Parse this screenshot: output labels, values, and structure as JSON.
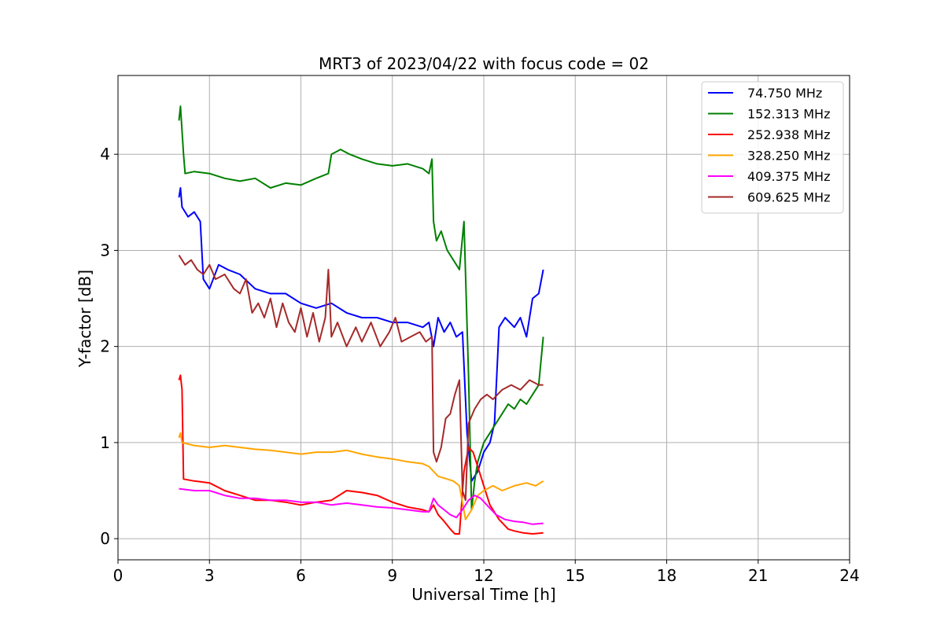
{
  "chart_data": {
    "type": "line",
    "title": "MRT3 of 2023/04/22 with focus code = 02",
    "xlabel": "Universal Time [h]",
    "ylabel": "Y-factor [dB]",
    "xlim": [
      0,
      24
    ],
    "ylim": [
      -0.22,
      4.82
    ],
    "x_ticks": [
      0,
      3,
      6,
      9,
      12,
      15,
      18,
      21,
      24
    ],
    "y_ticks": [
      0,
      1,
      2,
      3,
      4
    ],
    "grid": true,
    "legend_position": "top-right",
    "series": [
      {
        "name": " 74.750 MHz",
        "color": "#0000ff",
        "x": [
          2.0,
          2.05,
          2.1,
          2.3,
          2.5,
          2.7,
          2.8,
          3.0,
          3.3,
          3.6,
          4.0,
          4.5,
          5.0,
          5.5,
          6.0,
          6.5,
          7.0,
          7.5,
          8.0,
          8.5,
          9.0,
          9.5,
          10.0,
          10.2,
          10.35,
          10.5,
          10.7,
          10.9,
          11.1,
          11.3,
          11.45,
          11.6,
          11.8,
          12.0,
          12.2,
          12.35,
          12.5,
          12.7,
          13.0,
          13.2,
          13.4,
          13.6,
          13.8,
          13.95
        ],
        "y": [
          3.55,
          3.65,
          3.45,
          3.35,
          3.4,
          3.3,
          2.7,
          2.6,
          2.85,
          2.8,
          2.75,
          2.6,
          2.55,
          2.55,
          2.45,
          2.4,
          2.45,
          2.35,
          2.3,
          2.3,
          2.25,
          2.25,
          2.2,
          2.25,
          2.0,
          2.3,
          2.15,
          2.25,
          2.1,
          2.15,
          1.1,
          0.6,
          0.7,
          0.9,
          1.0,
          1.2,
          2.2,
          2.3,
          2.2,
          2.3,
          2.1,
          2.5,
          2.55,
          2.8
        ]
      },
      {
        "name": "152.313 MHz",
        "color": "#008000",
        "x": [
          2.0,
          2.05,
          2.15,
          2.2,
          2.5,
          3.0,
          3.5,
          4.0,
          4.5,
          5.0,
          5.5,
          6.0,
          6.5,
          6.9,
          7.0,
          7.3,
          7.6,
          8.0,
          8.5,
          9.0,
          9.5,
          10.0,
          10.2,
          10.3,
          10.35,
          10.45,
          10.6,
          10.8,
          11.0,
          11.2,
          11.35,
          11.5,
          11.6,
          11.7,
          11.8,
          12.0,
          12.2,
          12.4,
          12.6,
          12.8,
          13.0,
          13.2,
          13.4,
          13.6,
          13.8,
          13.95
        ],
        "y": [
          4.35,
          4.5,
          4.0,
          3.8,
          3.82,
          3.8,
          3.75,
          3.72,
          3.75,
          3.65,
          3.7,
          3.68,
          3.75,
          3.8,
          4.0,
          4.05,
          4.0,
          3.95,
          3.9,
          3.88,
          3.9,
          3.85,
          3.8,
          3.95,
          3.3,
          3.1,
          3.2,
          3.0,
          2.9,
          2.8,
          3.3,
          1.7,
          0.3,
          0.6,
          0.8,
          1.0,
          1.1,
          1.2,
          1.3,
          1.4,
          1.35,
          1.45,
          1.4,
          1.5,
          1.6,
          2.1
        ]
      },
      {
        "name": "252.938 MHz",
        "color": "#ff0000",
        "x": [
          2.0,
          2.05,
          2.1,
          2.15,
          2.5,
          3.0,
          3.5,
          4.0,
          4.5,
          5.0,
          5.5,
          6.0,
          6.5,
          7.0,
          7.5,
          8.0,
          8.5,
          9.0,
          9.5,
          10.0,
          10.2,
          10.35,
          10.5,
          10.7,
          10.9,
          11.05,
          11.2,
          11.35,
          11.5,
          11.65,
          11.8,
          12.0,
          12.2,
          12.5,
          12.8,
          13.0,
          13.3,
          13.6,
          13.95
        ],
        "y": [
          1.65,
          1.7,
          1.55,
          0.62,
          0.6,
          0.58,
          0.5,
          0.45,
          0.4,
          0.4,
          0.38,
          0.35,
          0.38,
          0.4,
          0.5,
          0.48,
          0.45,
          0.38,
          0.33,
          0.3,
          0.28,
          0.35,
          0.25,
          0.18,
          0.1,
          0.05,
          0.05,
          0.7,
          0.95,
          0.9,
          0.75,
          0.55,
          0.35,
          0.2,
          0.1,
          0.08,
          0.06,
          0.05,
          0.06
        ]
      },
      {
        "name": "328.250 MHz",
        "color": "#ffa500",
        "x": [
          2.0,
          2.05,
          2.1,
          2.5,
          3.0,
          3.5,
          4.0,
          4.5,
          5.0,
          5.5,
          6.0,
          6.5,
          7.0,
          7.5,
          8.0,
          8.5,
          9.0,
          9.5,
          10.0,
          10.2,
          10.35,
          10.5,
          10.8,
          11.0,
          11.2,
          11.4,
          11.6,
          11.8,
          12.0,
          12.3,
          12.6,
          13.0,
          13.4,
          13.7,
          13.95
        ],
        "y": [
          1.05,
          1.1,
          1.0,
          0.97,
          0.95,
          0.97,
          0.95,
          0.93,
          0.92,
          0.9,
          0.88,
          0.9,
          0.9,
          0.92,
          0.88,
          0.85,
          0.83,
          0.8,
          0.78,
          0.75,
          0.7,
          0.65,
          0.62,
          0.6,
          0.55,
          0.2,
          0.3,
          0.45,
          0.5,
          0.55,
          0.5,
          0.55,
          0.58,
          0.55,
          0.6
        ]
      },
      {
        "name": "409.375 MHz",
        "color": "#ff00ff",
        "x": [
          2.0,
          2.5,
          3.0,
          3.5,
          4.0,
          4.5,
          5.0,
          5.5,
          6.0,
          6.5,
          7.0,
          7.5,
          8.0,
          8.5,
          9.0,
          9.5,
          10.0,
          10.2,
          10.35,
          10.5,
          10.7,
          10.9,
          11.1,
          11.3,
          11.5,
          11.7,
          11.9,
          12.1,
          12.4,
          12.7,
          13.0,
          13.3,
          13.6,
          13.95
        ],
        "y": [
          0.52,
          0.5,
          0.5,
          0.45,
          0.42,
          0.42,
          0.4,
          0.4,
          0.38,
          0.38,
          0.35,
          0.37,
          0.35,
          0.33,
          0.32,
          0.3,
          0.28,
          0.28,
          0.42,
          0.35,
          0.3,
          0.25,
          0.22,
          0.3,
          0.4,
          0.45,
          0.42,
          0.35,
          0.25,
          0.2,
          0.18,
          0.17,
          0.15,
          0.16
        ]
      },
      {
        "name": "609.625 MHz",
        "color": "#a52a2a",
        "x": [
          2.0,
          2.2,
          2.4,
          2.6,
          2.8,
          3.0,
          3.2,
          3.5,
          3.8,
          4.0,
          4.2,
          4.4,
          4.6,
          4.8,
          5.0,
          5.2,
          5.4,
          5.6,
          5.8,
          6.0,
          6.2,
          6.4,
          6.6,
          6.8,
          6.9,
          7.0,
          7.2,
          7.5,
          7.8,
          8.0,
          8.3,
          8.6,
          8.9,
          9.1,
          9.3,
          9.6,
          9.9,
          10.1,
          10.3,
          10.35,
          10.45,
          10.6,
          10.75,
          10.9,
          11.05,
          11.2,
          11.3,
          11.4,
          11.5,
          11.7,
          11.9,
          12.1,
          12.3,
          12.6,
          12.9,
          13.2,
          13.5,
          13.8,
          13.95
        ],
        "y": [
          2.95,
          2.85,
          2.9,
          2.8,
          2.75,
          2.85,
          2.7,
          2.75,
          2.6,
          2.55,
          2.7,
          2.35,
          2.45,
          2.3,
          2.5,
          2.2,
          2.45,
          2.25,
          2.15,
          2.4,
          2.1,
          2.35,
          2.05,
          2.3,
          2.8,
          2.1,
          2.25,
          2.0,
          2.2,
          2.05,
          2.25,
          2.0,
          2.15,
          2.3,
          2.05,
          2.1,
          2.15,
          2.05,
          2.1,
          0.9,
          0.8,
          0.95,
          1.25,
          1.3,
          1.5,
          1.65,
          0.5,
          0.4,
          1.2,
          1.35,
          1.45,
          1.5,
          1.45,
          1.55,
          1.6,
          1.55,
          1.65,
          1.6,
          1.6
        ]
      }
    ]
  }
}
